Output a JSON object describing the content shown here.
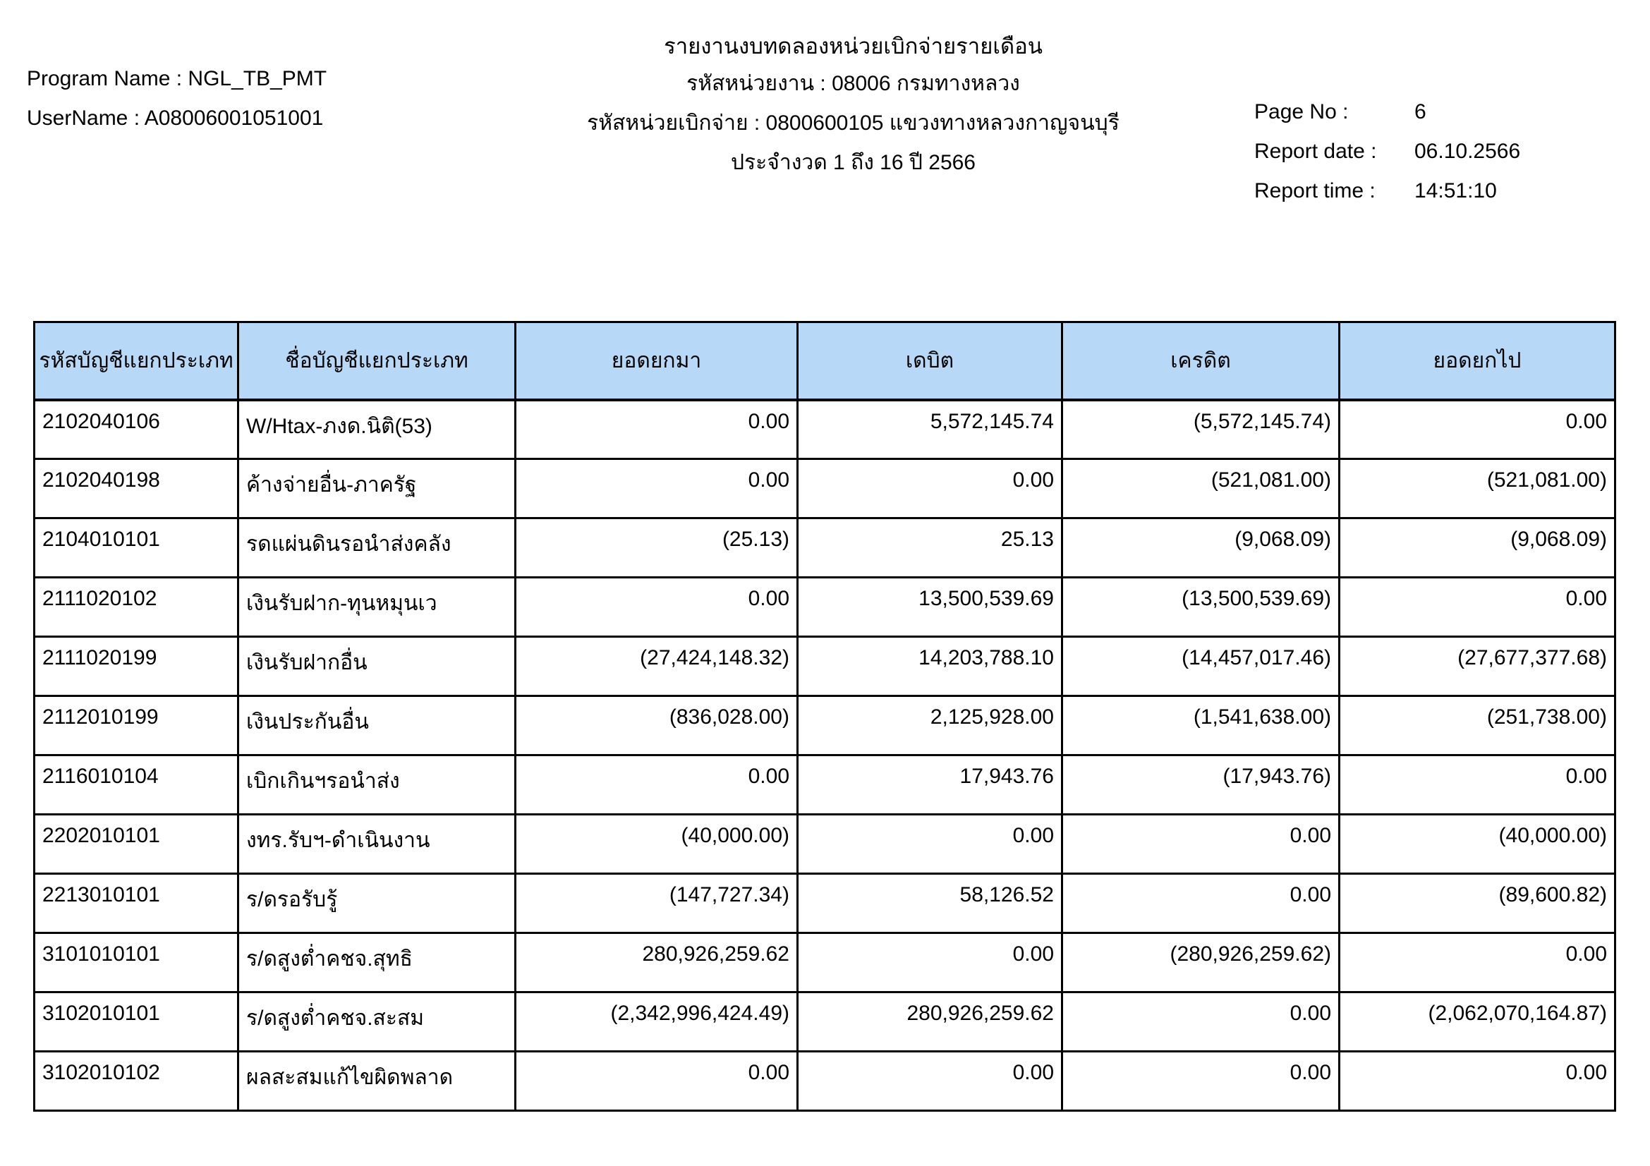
{
  "report": {
    "title": "รายงานงบทดลองหน่วยเบิกจ่ายรายเดือน",
    "program_name": "Program Name : NGL_TB_PMT",
    "username": "UserName : A08006001051001",
    "agency_line": "รหัสหน่วยงาน : 08006 กรมทางหลวง",
    "disbursement_line": "รหัสหน่วยเบิกจ่าย : 0800600105 แขวงทางหลวงกาญจนบุรี",
    "period_line": "ประจำงวด 1 ถึง 16 ปี 2566",
    "page_no_label": "Page No :",
    "page_no": "6",
    "report_date_label": "Report date :",
    "report_date": "06.10.2566",
    "report_time_label": "Report time :",
    "report_time": "14:51:10"
  },
  "colors": {
    "header_bg": "#b8d8f8",
    "border": "#000000",
    "page_bg": "#ffffff"
  },
  "table": {
    "columns": [
      "รหัสบัญชีแยกประเภท",
      "ชื่อบัญชีแยกประเภท",
      "ยอดยกมา",
      "เดบิต",
      "เครดิต",
      "ยอดยกไป"
    ],
    "rows": [
      [
        "2102040106",
        "W/Htax-ภงด.นิติ(53)",
        "0.00",
        "5,572,145.74",
        "(5,572,145.74)",
        "0.00"
      ],
      [
        "2102040198",
        "ค้างจ่ายอื่น-ภาครัฐ",
        "0.00",
        "0.00",
        "(521,081.00)",
        "(521,081.00)"
      ],
      [
        "2104010101",
        "รดแผ่นดินรอนำส่งคลัง",
        "(25.13)",
        "25.13",
        "(9,068.09)",
        "(9,068.09)"
      ],
      [
        "2111020102",
        "เงินรับฝาก-ทุนหมุนเว",
        "0.00",
        "13,500,539.69",
        "(13,500,539.69)",
        "0.00"
      ],
      [
        "2111020199",
        "เงินรับฝากอื่น",
        "(27,424,148.32)",
        "14,203,788.10",
        "(14,457,017.46)",
        "(27,677,377.68)"
      ],
      [
        "2112010199",
        "เงินประกันอื่น",
        "(836,028.00)",
        "2,125,928.00",
        "(1,541,638.00)",
        "(251,738.00)"
      ],
      [
        "2116010104",
        "เบิกเกินฯรอนำส่ง",
        "0.00",
        "17,943.76",
        "(17,943.76)",
        "0.00"
      ],
      [
        "2202010101",
        "งทร.รับฯ-ดำเนินงาน",
        "(40,000.00)",
        "0.00",
        "0.00",
        "(40,000.00)"
      ],
      [
        "2213010101",
        "ร/ดรอรับรู้",
        "(147,727.34)",
        "58,126.52",
        "0.00",
        "(89,600.82)"
      ],
      [
        "3101010101",
        "ร/ดสูงต่ำคชจ.สุทธิ",
        "280,926,259.62",
        "0.00",
        "(280,926,259.62)",
        "0.00"
      ],
      [
        "3102010101",
        "ร/ดสูงต่ำคชจ.สะสม",
        "(2,342,996,424.49)",
        "280,926,259.62",
        "0.00",
        "(2,062,070,164.87)"
      ],
      [
        "3102010102",
        "ผลสะสมแก้ไขผิดพลาด",
        "0.00",
        "0.00",
        "0.00",
        "0.00"
      ]
    ]
  }
}
